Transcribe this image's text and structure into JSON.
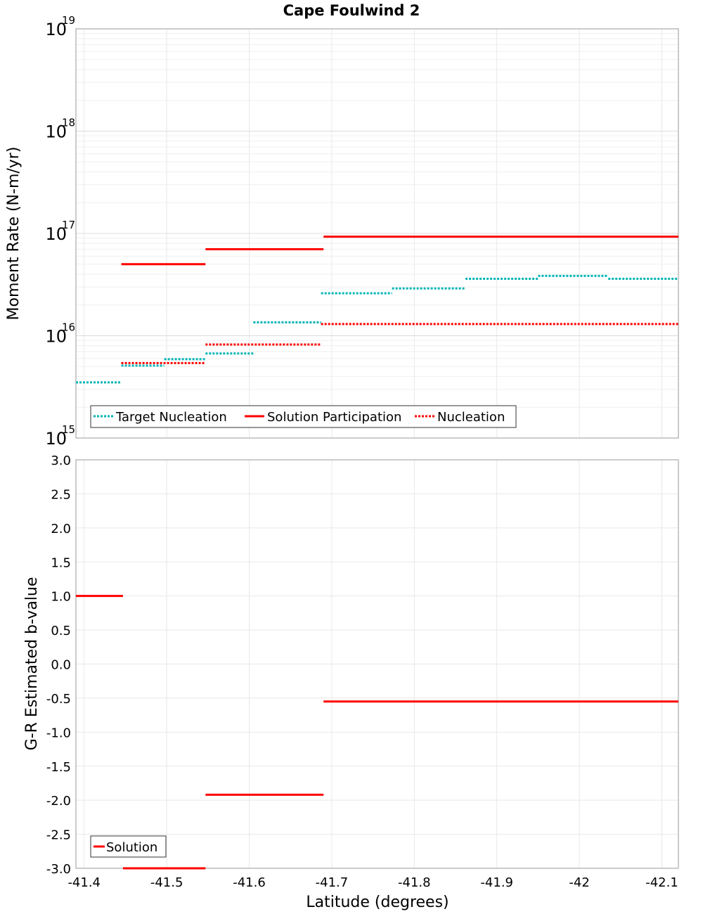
{
  "chart_data": [
    {
      "type": "line",
      "title": "Cape Foulwind 2",
      "ylabel": "Moment Rate (N-m/yr)",
      "xlabel": "",
      "yscale": "log",
      "ylim": [
        1000000000000000.0,
        1e+19
      ],
      "xlim": [
        -41.39,
        -42.12
      ],
      "grid": true,
      "legend_position": "bottom-left",
      "yticks": [
        {
          "value": 1000000000000000.0,
          "base": "10",
          "exp": "15"
        },
        {
          "value": 1e+16,
          "base": "10",
          "exp": "16"
        },
        {
          "value": 1e+17,
          "base": "10",
          "exp": "17"
        },
        {
          "value": 1e+18,
          "base": "10",
          "exp": "18"
        },
        {
          "value": 1e+19,
          "base": "10",
          "exp": "19"
        }
      ],
      "series": [
        {
          "name": "Target Nucleation",
          "color": "#00b4b4",
          "style": "dotted",
          "segments": [
            {
              "x": [
                -41.39,
                -41.445
              ],
              "y": 3500000000000000.0
            },
            {
              "x": [
                -41.445,
                -41.497
              ],
              "y": 5100000000000000.0
            },
            {
              "x": [
                -41.497,
                -41.547
              ],
              "y": 5900000000000000.0
            },
            {
              "x": [
                -41.547,
                -41.605
              ],
              "y": 6700000000000000.0
            },
            {
              "x": [
                -41.605,
                -41.687
              ],
              "y": 1.35e+16
            },
            {
              "x": [
                -41.687,
                -41.773
              ],
              "y": 2.6e+16
            },
            {
              "x": [
                -41.773,
                -41.862
              ],
              "y": 2.9e+16
            },
            {
              "x": [
                -41.862,
                -41.95
              ],
              "y": 3.6e+16
            },
            {
              "x": [
                -41.95,
                -42.035
              ],
              "y": 3.85e+16
            },
            {
              "x": [
                -42.035,
                -42.12
              ],
              "y": 3.6e+16
            }
          ]
        },
        {
          "name": "Solution Participation",
          "color": "#ff0000",
          "style": "solid",
          "segments": [
            {
              "x": [
                -41.445,
                -41.547
              ],
              "y": 5e+16
            },
            {
              "x": [
                -41.547,
                -41.69
              ],
              "y": 7e+16
            },
            {
              "x": [
                -41.69,
                -42.12
              ],
              "y": 9.3e+16
            }
          ]
        },
        {
          "name": "Nucleation",
          "color": "#ff0000",
          "style": "dotted",
          "segments": [
            {
              "x": [
                -41.445,
                -41.547
              ],
              "y": 5400000000000000.0
            },
            {
              "x": [
                -41.547,
                -41.687
              ],
              "y": 8200000000000000.0
            },
            {
              "x": [
                -41.687,
                -42.12
              ],
              "y": 1.3e+16
            }
          ]
        }
      ]
    },
    {
      "type": "line",
      "title": "",
      "xlabel": "Latitude (degrees)",
      "ylabel": "G-R Estimated b-value",
      "ylim": [
        -3.0,
        3.0
      ],
      "xlim": [
        -41.39,
        -42.12
      ],
      "grid": true,
      "legend_position": "bottom-left",
      "yticks": [
        "3.0",
        "2.5",
        "2.0",
        "1.5",
        "1.0",
        "0.5",
        "0.0",
        "-0.5",
        "-1.0",
        "-1.5",
        "-2.0",
        "-2.5",
        "-3.0"
      ],
      "xticks": [
        "-41.4",
        "-41.5",
        "-41.6",
        "-41.7",
        "-41.8",
        "-41.9",
        "-42",
        "-42.1"
      ],
      "series": [
        {
          "name": "Solution",
          "color": "#ff0000",
          "style": "solid",
          "segments": [
            {
              "x": [
                -41.39,
                -41.447
              ],
              "y": 1.0
            },
            {
              "x": [
                -41.447,
                -41.547
              ],
              "y": -3.0
            },
            {
              "x": [
                -41.547,
                -41.69
              ],
              "y": -1.92
            },
            {
              "x": [
                -41.69,
                -42.12
              ],
              "y": -0.55
            }
          ]
        }
      ]
    }
  ]
}
